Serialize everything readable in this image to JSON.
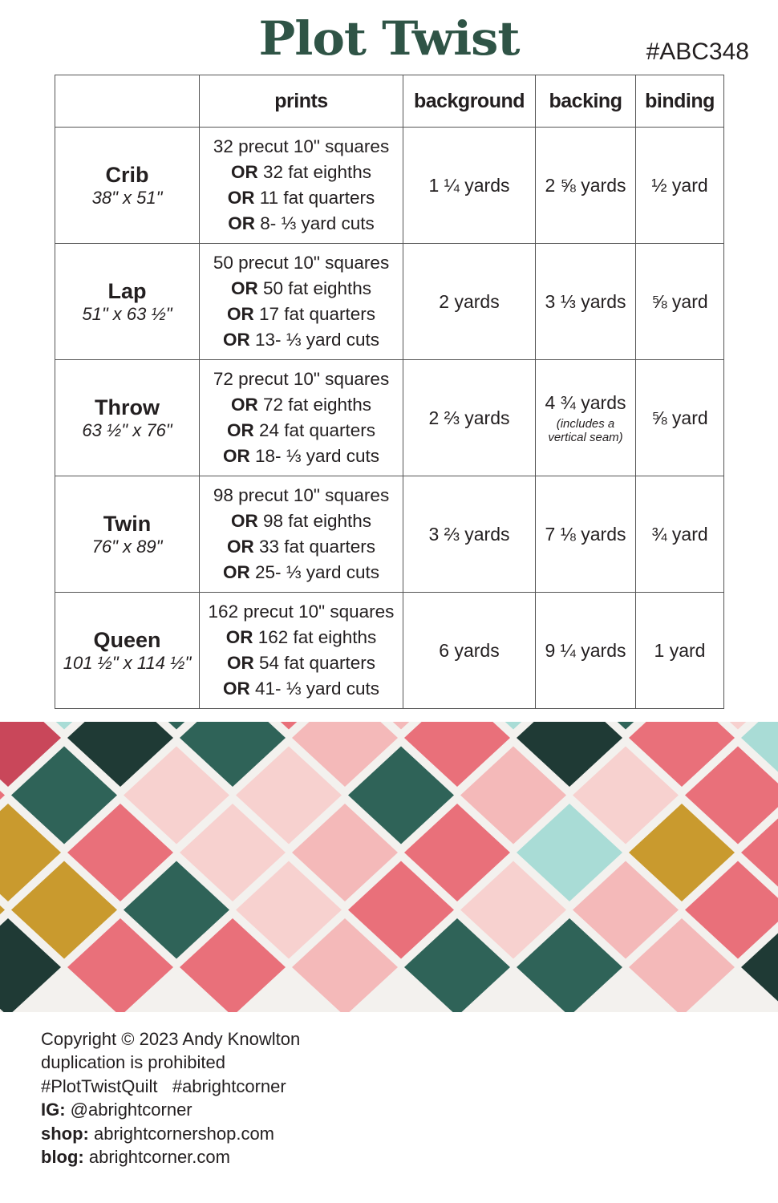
{
  "title": "Plot Twist",
  "pattern_code": "#ABC348",
  "table": {
    "headers": [
      "",
      "prints",
      "background",
      "backing",
      "binding"
    ],
    "rows": [
      {
        "size": "Crib",
        "dimensions": "38\" x 51\"",
        "prints": [
          {
            "or": "",
            "text": "32 precut 10\" squares"
          },
          {
            "or": "OR",
            "text": " 32 fat eighths"
          },
          {
            "or": "OR",
            "text": " 11 fat quarters"
          },
          {
            "or": "OR",
            "text": " 8- ⅓ yard cuts"
          }
        ],
        "background": "1 ¼ yards",
        "backing": "2 ⅝ yards",
        "backing_note": "",
        "binding": "½ yard"
      },
      {
        "size": "Lap",
        "dimensions": "51\" x 63 ½\"",
        "prints": [
          {
            "or": "",
            "text": "50 precut 10\" squares"
          },
          {
            "or": "OR",
            "text": " 50 fat eighths"
          },
          {
            "or": "OR",
            "text": " 17 fat quarters"
          },
          {
            "or": "OR",
            "text": " 13- ⅓ yard cuts"
          }
        ],
        "background": "2 yards",
        "backing": "3 ⅓ yards",
        "backing_note": "",
        "binding": "⅝ yard"
      },
      {
        "size": "Throw",
        "dimensions": "63 ½\" x 76\"",
        "prints": [
          {
            "or": "",
            "text": "72 precut 10\" squares"
          },
          {
            "or": "OR",
            "text": " 72 fat eighths"
          },
          {
            "or": "OR",
            "text": " 24 fat quarters"
          },
          {
            "or": "OR",
            "text": " 18- ⅓ yard cuts"
          }
        ],
        "background": "2 ⅔ yards",
        "backing": "4 ¾ yards",
        "backing_note": "(includes a vertical seam)",
        "binding": "⅝ yard"
      },
      {
        "size": "Twin",
        "dimensions": "76\" x 89\"",
        "prints": [
          {
            "or": "",
            "text": "98 precut 10\" squares"
          },
          {
            "or": "OR",
            "text": " 98 fat eighths"
          },
          {
            "or": "OR",
            "text": " 33 fat quarters"
          },
          {
            "or": "OR",
            "text": " 25- ⅓ yard cuts"
          }
        ],
        "background": "3 ⅔ yards",
        "backing": "7 ⅛ yards",
        "backing_note": "",
        "binding": "¾ yard"
      },
      {
        "size": "Queen",
        "dimensions": "101 ½\" x 114 ½\"",
        "prints": [
          {
            "or": "",
            "text": "162 precut 10\" squares"
          },
          {
            "or": "OR",
            "text": " 162 fat eighths"
          },
          {
            "or": "OR",
            "text": " 54 fat quarters"
          },
          {
            "or": "OR",
            "text": " 41- ⅓ yard cuts"
          }
        ],
        "background": "6 yards",
        "backing": "9 ¼ yards",
        "backing_note": "",
        "binding": "1 yard"
      }
    ]
  },
  "photo": {
    "colors": [
      "#2f6358",
      "#e9707a",
      "#c99a2e",
      "#f4b9b9",
      "#a9dcd6",
      "#1f3a35",
      "#c9475a",
      "#f7d1cf"
    ]
  },
  "footer": {
    "copyright": "Copyright © 2023 Andy Knowlton",
    "duplication": "duplication is prohibited",
    "hashtags": "#PlotTwistQuilt   #abrightcorner",
    "ig_label": "IG:",
    "ig_value": " @abrightcorner",
    "shop_label": "shop:",
    "shop_value": " abrightcornershop.com",
    "blog_label": "blog:",
    "blog_value": " abrightcorner.com"
  }
}
